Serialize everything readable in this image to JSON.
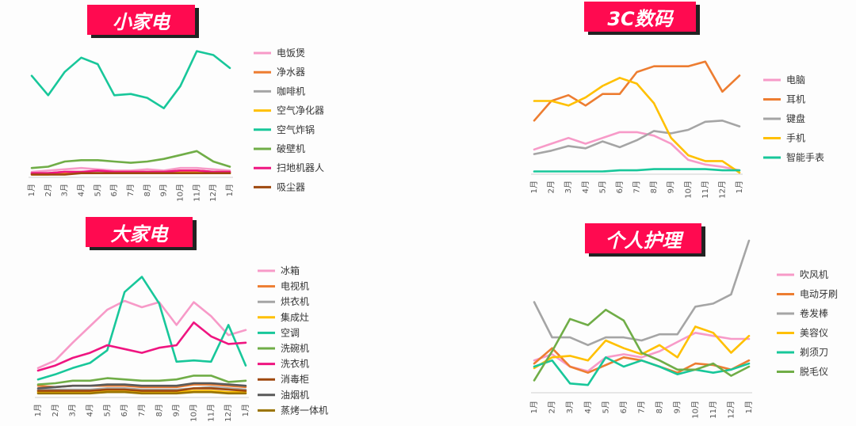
{
  "chart_data": [
    {
      "type": "line",
      "title": "小家电",
      "categories": [
        "1月",
        "2月",
        "3月",
        "4月",
        "5月",
        "6月",
        "7月",
        "8月",
        "9月",
        "10月",
        "11月",
        "12月",
        "1月"
      ],
      "ylim": [
        0,
        100
      ],
      "series": [
        {
          "name": "电饭煲",
          "color": "#f79ac8",
          "values": [
            3,
            4,
            5,
            6,
            5,
            4,
            4,
            5,
            4,
            6,
            6,
            5,
            4
          ]
        },
        {
          "name": "净水器",
          "color": "#ed7d31",
          "values": [
            2,
            2,
            3,
            3,
            3,
            3,
            3,
            3,
            3,
            4,
            4,
            3,
            3
          ]
        },
        {
          "name": "咖啡机",
          "color": "#a5a5a5",
          "values": [
            2,
            2,
            2,
            2,
            3,
            2,
            2,
            2,
            2,
            3,
            3,
            2,
            2
          ]
        },
        {
          "name": "空气净化器",
          "color": "#ffc000",
          "values": [
            1,
            1,
            2,
            2,
            2,
            2,
            2,
            2,
            2,
            3,
            3,
            2,
            2
          ]
        },
        {
          "name": "空气炸锅",
          "color": "#18c79a",
          "values": [
            77,
            62,
            80,
            91,
            86,
            62,
            63,
            60,
            52,
            69,
            96,
            93,
            83
          ]
        },
        {
          "name": "破壁机",
          "color": "#70ad47",
          "values": [
            6,
            7,
            11,
            12,
            12,
            11,
            10,
            11,
            13,
            16,
            19,
            11,
            7
          ]
        },
        {
          "name": "扫地机器人",
          "color": "#ef1580",
          "values": [
            2,
            2,
            3,
            3,
            4,
            3,
            3,
            3,
            3,
            4,
            4,
            3,
            3
          ]
        },
        {
          "name": "吸尘器",
          "color": "#9e480e",
          "values": [
            1,
            1,
            1,
            2,
            2,
            2,
            2,
            2,
            2,
            2,
            2,
            2,
            2
          ]
        }
      ]
    },
    {
      "type": "line",
      "title": "3C数码",
      "categories": [
        "1月",
        "2月",
        "3月",
        "4月",
        "5月",
        "6月",
        "7月",
        "8月",
        "9月",
        "10月",
        "11月",
        "12月",
        "1月"
      ],
      "ylim": [
        0,
        100
      ],
      "series": [
        {
          "name": "电脑",
          "color": "#f79ac8",
          "values": [
            20,
            25,
            30,
            25,
            30,
            35,
            35,
            32,
            25,
            11,
            7,
            5,
            2
          ]
        },
        {
          "name": "耳机",
          "color": "#ed7d31",
          "values": [
            45,
            62,
            67,
            58,
            68,
            68,
            87,
            92,
            92,
            92,
            96,
            70,
            84
          ]
        },
        {
          "name": "键盘",
          "color": "#a5a5a5",
          "values": [
            16,
            19,
            23,
            21,
            27,
            22,
            28,
            36,
            34,
            37,
            44,
            45,
            40
          ]
        },
        {
          "name": "手机",
          "color": "#ffc000",
          "values": [
            62,
            62,
            58,
            65,
            75,
            82,
            77,
            60,
            30,
            15,
            10,
            10,
            0
          ]
        },
        {
          "name": "智能手表",
          "color": "#18c79a",
          "values": [
            1,
            1,
            1,
            1,
            1,
            2,
            2,
            3,
            3,
            3,
            3,
            2,
            2
          ]
        }
      ]
    },
    {
      "type": "line",
      "title": "大家电",
      "categories": [
        "1月",
        "2月",
        "3月",
        "4月",
        "5月",
        "6月",
        "7月",
        "8月",
        "9月",
        "10月",
        "11月",
        "12月",
        "1月"
      ],
      "ylim": [
        0,
        100
      ],
      "series": [
        {
          "name": "冰箱",
          "color": "#f79ac8",
          "values": [
            22,
            28,
            42,
            55,
            68,
            75,
            70,
            74,
            56,
            74,
            63,
            48,
            52
          ]
        },
        {
          "name": "电视机",
          "color": "#ed7d31",
          "values": [
            8,
            7,
            8,
            8,
            8,
            8,
            7,
            7,
            7,
            9,
            9,
            8,
            7
          ]
        },
        {
          "name": "烘衣机",
          "color": "#a5a5a5",
          "values": [
            5,
            5,
            5,
            5,
            6,
            6,
            5,
            5,
            5,
            6,
            7,
            6,
            5
          ]
        },
        {
          "name": "集成灶",
          "color": "#ffc000",
          "values": [
            3,
            3,
            3,
            3,
            4,
            4,
            3,
            3,
            3,
            4,
            4,
            3,
            3
          ]
        },
        {
          "name": "空调",
          "color": "#18c79a",
          "values": [
            13,
            17,
            22,
            26,
            36,
            82,
            94,
            73,
            27,
            28,
            27,
            56,
            24
          ]
        },
        {
          "name": "洗碗机",
          "color": "#70ad47",
          "values": [
            9,
            10,
            12,
            12,
            14,
            13,
            12,
            12,
            13,
            16,
            16,
            11,
            12
          ]
        },
        {
          "name": "洗衣机",
          "color": "#ef1580",
          "values": [
            20,
            24,
            30,
            34,
            40,
            37,
            34,
            38,
            40,
            58,
            47,
            41,
            42
          ]
        },
        {
          "name": "消毒柜",
          "color": "#9e480e",
          "values": [
            4,
            4,
            4,
            4,
            5,
            5,
            4,
            4,
            4,
            6,
            6,
            5,
            4
          ]
        },
        {
          "name": "油烟机",
          "color": "#595959",
          "values": [
            6,
            7,
            8,
            8,
            9,
            9,
            8,
            8,
            8,
            10,
            10,
            9,
            8
          ]
        },
        {
          "name": "蒸烤一体机",
          "color": "#997300",
          "values": [
            2,
            2,
            2,
            2,
            3,
            3,
            2,
            2,
            2,
            3,
            3,
            2,
            2
          ]
        }
      ]
    },
    {
      "type": "line",
      "title": "个人护理",
      "categories": [
        "1月",
        "2月",
        "3月",
        "4月",
        "5月",
        "6月",
        "7月",
        "8月",
        "9月",
        "10月",
        "11月",
        "12月",
        "1月"
      ],
      "ylim": [
        0,
        100
      ],
      "series": [
        {
          "name": "吹风机",
          "color": "#f79ac8",
          "values": [
            20,
            24,
            16,
            13,
            22,
            24,
            22,
            26,
            32,
            38,
            36,
            34,
            34
          ]
        },
        {
          "name": "电动牙刷",
          "color": "#ed7d31",
          "values": [
            18,
            28,
            16,
            12,
            17,
            22,
            20,
            16,
            12,
            18,
            17,
            14,
            20
          ]
        },
        {
          "name": "卷发棒",
          "color": "#a5a5a5",
          "values": [
            58,
            35,
            35,
            30,
            35,
            35,
            33,
            37,
            37,
            55,
            57,
            63,
            98
          ]
        },
        {
          "name": "美容仪",
          "color": "#ffc000",
          "values": [
            15,
            22,
            23,
            20,
            33,
            28,
            24,
            30,
            22,
            42,
            38,
            25,
            36
          ]
        },
        {
          "name": "剃须刀",
          "color": "#18c79a",
          "values": [
            16,
            20,
            5,
            4,
            22,
            16,
            20,
            16,
            11,
            14,
            12,
            14,
            18
          ]
        },
        {
          "name": "脱毛仪",
          "color": "#70ad47",
          "values": [
            7,
            26,
            47,
            43,
            53,
            46,
            25,
            20,
            14,
            14,
            18,
            10,
            16
          ]
        }
      ]
    }
  ]
}
